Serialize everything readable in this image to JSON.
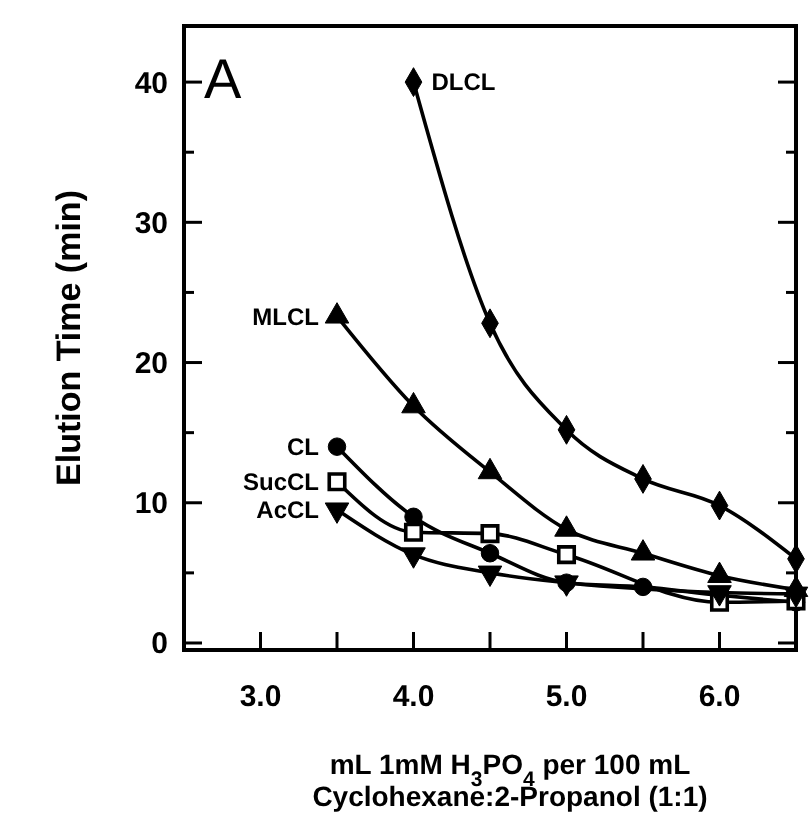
{
  "chart_data": {
    "type": "line",
    "title": "A",
    "xlabel": "mL 1mM H$_{3}$PO$_{4}$ per 100 mL\nCyclohexane:2-Propanol (1:1)",
    "ylabel": "Elution Time (min)",
    "x": [
      3.5,
      4.0,
      4.5,
      5.0,
      5.5,
      6.0,
      6.5
    ],
    "xlim": [
      2.5,
      6.5
    ],
    "xticks": [
      {
        "value": 3,
        "label": "3.0"
      },
      {
        "value": 3.5,
        "label": null
      },
      {
        "value": 4,
        "label": "4.0"
      },
      {
        "value": 4.5,
        "label": null
      },
      {
        "value": 5,
        "label": "5.0"
      },
      {
        "value": 5.5,
        "label": null
      },
      {
        "value": 6,
        "label": "6.0"
      },
      {
        "value": 6.5,
        "label": null
      }
    ],
    "ylim": [
      -0.5,
      44
    ],
    "yticks": [
      0,
      {
        "value": 5,
        "label": null
      },
      10,
      {
        "value": 15,
        "label": null
      },
      20,
      {
        "value": 25,
        "label": null
      },
      30,
      {
        "value": 35,
        "label": null
      },
      40
    ],
    "grid": false,
    "line_style": "solid",
    "series": [
      {
        "name": "DLCL",
        "color": "#000000",
        "marker": "diamond",
        "values": [
          null,
          40,
          22.8,
          15.2,
          11.7,
          9.8,
          6.0
        ]
      },
      {
        "name": "MLCL",
        "color": "#000000",
        "marker": "triangle",
        "values": [
          23.3,
          16.9,
          12.2,
          8.1,
          6.4,
          4.8,
          3.8
        ]
      },
      {
        "name": "CL",
        "color": "#000000",
        "marker": "circle",
        "values": [
          14.0,
          9.0,
          6.4,
          4.3,
          4.0,
          3.4,
          2.9
        ]
      },
      {
        "name": "SucCL",
        "color": "#000000",
        "marker": "square",
        "values": [
          11.5,
          7.9,
          7.8,
          6.3,
          null,
          2.9,
          3.0
        ]
      },
      {
        "name": "AcCL",
        "color": "#000000",
        "marker": "triangle-down",
        "values": [
          9.5,
          6.3,
          5.0,
          4.3,
          null,
          3.6,
          3.5
        ]
      }
    ]
  }
}
